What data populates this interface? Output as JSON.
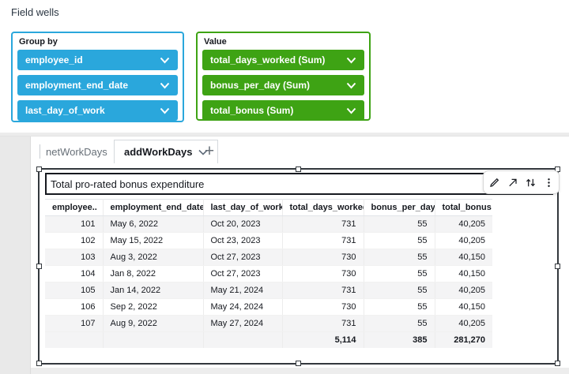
{
  "header": {
    "title": "Field wells"
  },
  "field_wells": {
    "group_by": {
      "label": "Group by",
      "color": "#2aa7dc",
      "pills": [
        "employee_id",
        "employment_end_date",
        "last_day_of_work"
      ]
    },
    "value": {
      "label": "Value",
      "color": "#3ea314",
      "pills": [
        "total_days_worked (Sum)",
        "bonus_per_day (Sum)",
        "total_bonus (Sum)"
      ]
    }
  },
  "sheet_tabs": {
    "tabs": [
      {
        "label": "netWorkDays",
        "active": false
      },
      {
        "label": "addWorkDays",
        "active": true
      }
    ],
    "add_button": "+"
  },
  "visual": {
    "title": "Total pro-rated bonus expenditure",
    "toolbar_icons": [
      "pencil-icon",
      "maximize-icon",
      "swap-axes-icon",
      "kebab-menu-icon"
    ]
  },
  "chart_data": {
    "type": "table",
    "columns": [
      "employee..",
      "employment_end_date",
      "last_day_of_work",
      "total_days_worked",
      "bonus_per_day",
      "total_bonus"
    ],
    "rows": [
      [
        "101",
        "May 6, 2022",
        "Oct 20, 2023",
        "731",
        "55",
        "40,205"
      ],
      [
        "102",
        "May 15, 2022",
        "Oct 23, 2023",
        "731",
        "55",
        "40,205"
      ],
      [
        "103",
        "Aug 3, 2022",
        "Oct 27, 2023",
        "730",
        "55",
        "40,150"
      ],
      [
        "104",
        "Jan 8, 2022",
        "Oct 27, 2023",
        "730",
        "55",
        "40,150"
      ],
      [
        "105",
        "Jan 14, 2022",
        "May 21, 2024",
        "731",
        "55",
        "40,205"
      ],
      [
        "106",
        "Sep 2, 2022",
        "May 24, 2024",
        "730",
        "55",
        "40,150"
      ],
      [
        "107",
        "Aug 9, 2022",
        "May 27, 2024",
        "731",
        "55",
        "40,205"
      ]
    ],
    "totals": [
      "",
      "",
      "",
      "5,114",
      "385",
      "281,270"
    ]
  }
}
